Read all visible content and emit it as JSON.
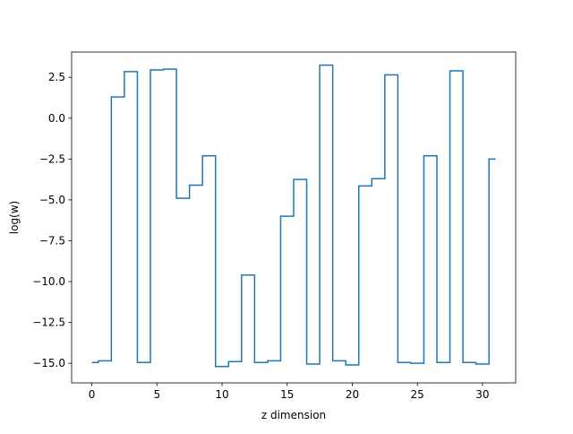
{
  "chart_data": {
    "type": "line",
    "drawstyle": "steps-mid",
    "title": "",
    "xlabel": "z dimension",
    "ylabel": "log(w)",
    "xlim": [
      -1.55,
      32.55
    ],
    "ylim": [
      -16.2,
      4.05
    ],
    "xticks": [
      0,
      5,
      10,
      15,
      20,
      25,
      30
    ],
    "xtick_labels": [
      "0",
      "5",
      "10",
      "15",
      "20",
      "25",
      "30"
    ],
    "yticks": [
      -15.0,
      -12.5,
      -10.0,
      -7.5,
      -5.0,
      -2.5,
      0.0,
      2.5
    ],
    "ytick_labels": [
      "−15.0",
      "−12.5",
      "−10.0",
      "−7.5",
      "−5.0",
      "−2.5",
      "0.0",
      "2.5"
    ],
    "grid": false,
    "series": [
      {
        "color": "#1f77b4",
        "x": [
          0,
          1,
          2,
          3,
          4,
          5,
          6,
          7,
          8,
          9,
          10,
          11,
          12,
          13,
          14,
          15,
          16,
          17,
          18,
          19,
          20,
          21,
          22,
          23,
          24,
          25,
          26,
          27,
          28,
          29,
          30,
          31
        ],
        "values": [
          -14.95,
          -14.85,
          1.3,
          2.85,
          -14.95,
          2.95,
          3.0,
          -4.9,
          -4.1,
          -2.3,
          -15.2,
          -14.9,
          -9.6,
          -14.95,
          -14.85,
          -6.0,
          -3.75,
          -15.05,
          3.25,
          -14.85,
          -15.1,
          -4.15,
          -3.7,
          2.65,
          -14.95,
          -15.0,
          -2.3,
          -14.95,
          2.9,
          -14.95,
          -15.05,
          -2.5
        ]
      }
    ]
  }
}
